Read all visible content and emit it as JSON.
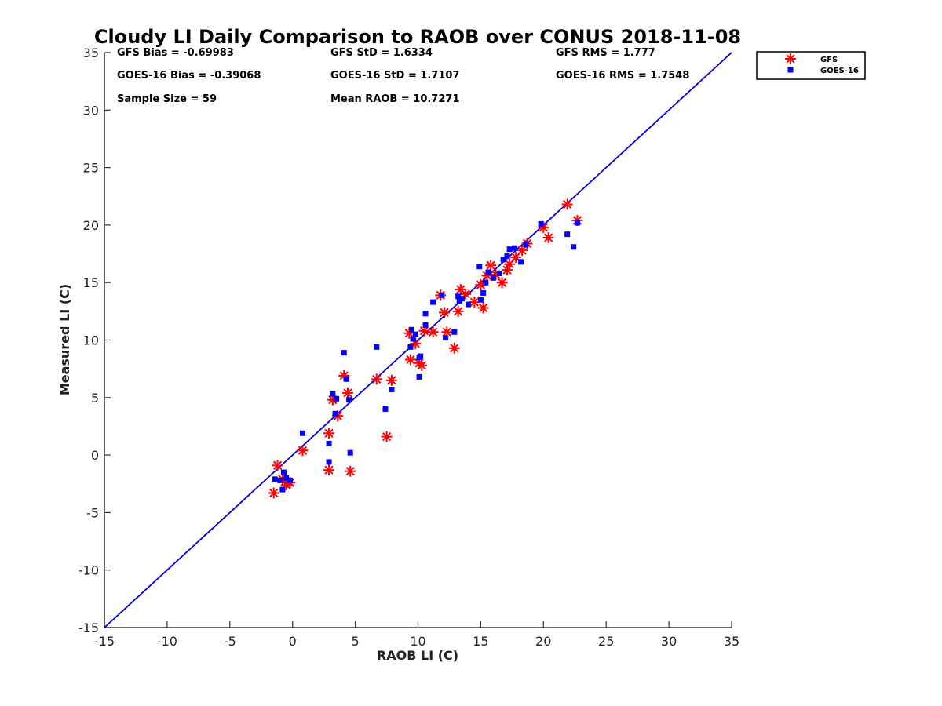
{
  "chart_data": {
    "type": "scatter",
    "title": "Cloudy LI Daily Comparison to RAOB over CONUS 2018-11-08",
    "xlabel": "RAOB LI (C)",
    "ylabel": "Measured LI (C)",
    "xlim": [
      -15,
      35
    ],
    "ylim": [
      -15,
      35
    ],
    "xticks": [
      -15,
      -10,
      -5,
      0,
      5,
      10,
      15,
      20,
      25,
      30,
      35
    ],
    "yticks": [
      -15,
      -10,
      -5,
      0,
      5,
      10,
      15,
      20,
      25,
      30,
      35
    ],
    "grid": false,
    "legend_position": "outside-top-right",
    "reference_line": {
      "name": "1:1 line",
      "from": [
        -15,
        -15
      ],
      "to": [
        35,
        35
      ],
      "color": "#0000dd"
    },
    "stats": [
      [
        "GFS Bias = -0.69983",
        "GFS StD = 1.6334",
        "GFS RMS = 1.777"
      ],
      [
        "GOES-16 Bias = -0.39068",
        "GOES-16 StD = 1.7107",
        "GOES-16 RMS = 1.7548"
      ],
      [
        "Sample Size = 59",
        "Mean RAOB = 10.7271",
        ""
      ]
    ],
    "series": [
      {
        "name": "GFS",
        "marker": "asterisk",
        "color": "#ff0000",
        "points": [
          [
            -1.5,
            -3.3
          ],
          [
            -1.2,
            -0.9
          ],
          [
            -0.8,
            -2.1
          ],
          [
            -0.5,
            -2.6
          ],
          [
            -0.2,
            -2.4
          ],
          [
            0.8,
            0.4
          ],
          [
            2.9,
            1.9
          ],
          [
            2.9,
            -1.3
          ],
          [
            3.2,
            4.8
          ],
          [
            3.6,
            3.4
          ],
          [
            4.1,
            6.9
          ],
          [
            4.4,
            5.4
          ],
          [
            4.6,
            -1.4
          ],
          [
            6.7,
            6.6
          ],
          [
            7.5,
            1.6
          ],
          [
            7.9,
            6.5
          ],
          [
            9.3,
            10.6
          ],
          [
            9.4,
            8.3
          ],
          [
            9.8,
            9.7
          ],
          [
            10.1,
            8.0
          ],
          [
            10.3,
            7.8
          ],
          [
            10.5,
            10.8
          ],
          [
            11.2,
            10.7
          ],
          [
            11.8,
            13.9
          ],
          [
            12.1,
            12.4
          ],
          [
            12.3,
            10.7
          ],
          [
            12.9,
            9.3
          ],
          [
            13.2,
            12.5
          ],
          [
            13.4,
            14.4
          ],
          [
            13.8,
            14.0
          ],
          [
            14.5,
            13.3
          ],
          [
            15.0,
            14.8
          ],
          [
            15.2,
            12.8
          ],
          [
            15.5,
            15.6
          ],
          [
            15.8,
            16.5
          ],
          [
            16.2,
            15.7
          ],
          [
            16.7,
            15.0
          ],
          [
            17.1,
            16.1
          ],
          [
            17.3,
            16.6
          ],
          [
            17.8,
            17.2
          ],
          [
            18.3,
            17.8
          ],
          [
            18.7,
            18.4
          ],
          [
            20.0,
            19.8
          ],
          [
            20.4,
            18.9
          ],
          [
            21.9,
            21.8
          ],
          [
            22.7,
            20.4
          ]
        ]
      },
      {
        "name": "GOES-16",
        "marker": "square",
        "color": "#0000ff",
        "points": [
          [
            -1.4,
            -2.1
          ],
          [
            -1.0,
            -2.2
          ],
          [
            -0.8,
            -3.0
          ],
          [
            -0.7,
            -1.5
          ],
          [
            -0.5,
            -2.0
          ],
          [
            -0.2,
            -2.2
          ],
          [
            0.8,
            1.9
          ],
          [
            2.9,
            1.0
          ],
          [
            2.9,
            -0.6
          ],
          [
            3.2,
            5.3
          ],
          [
            3.4,
            3.6
          ],
          [
            3.5,
            4.9
          ],
          [
            4.1,
            8.9
          ],
          [
            4.3,
            6.6
          ],
          [
            4.5,
            4.8
          ],
          [
            4.6,
            0.2
          ],
          [
            6.7,
            9.4
          ],
          [
            7.4,
            4.0
          ],
          [
            7.9,
            5.7
          ],
          [
            9.4,
            9.4
          ],
          [
            9.5,
            10.9
          ],
          [
            9.6,
            10.1
          ],
          [
            9.8,
            10.5
          ],
          [
            10.1,
            8.5
          ],
          [
            10.1,
            6.8
          ],
          [
            10.2,
            8.6
          ],
          [
            10.6,
            12.3
          ],
          [
            10.6,
            11.3
          ],
          [
            11.2,
            13.3
          ],
          [
            11.9,
            13.9
          ],
          [
            12.2,
            10.2
          ],
          [
            12.9,
            10.7
          ],
          [
            13.2,
            13.8
          ],
          [
            13.3,
            13.4
          ],
          [
            13.5,
            13.6
          ],
          [
            14.0,
            13.1
          ],
          [
            14.9,
            16.4
          ],
          [
            15.0,
            13.5
          ],
          [
            15.2,
            14.1
          ],
          [
            15.4,
            15.0
          ],
          [
            15.6,
            15.9
          ],
          [
            16.0,
            15.4
          ],
          [
            16.5,
            15.8
          ],
          [
            16.8,
            17.0
          ],
          [
            17.1,
            17.3
          ],
          [
            17.3,
            17.9
          ],
          [
            17.7,
            18.0
          ],
          [
            18.2,
            16.8
          ],
          [
            18.6,
            18.3
          ],
          [
            19.8,
            20.1
          ],
          [
            21.9,
            19.2
          ],
          [
            22.4,
            18.1
          ],
          [
            22.7,
            20.2
          ]
        ]
      }
    ]
  }
}
